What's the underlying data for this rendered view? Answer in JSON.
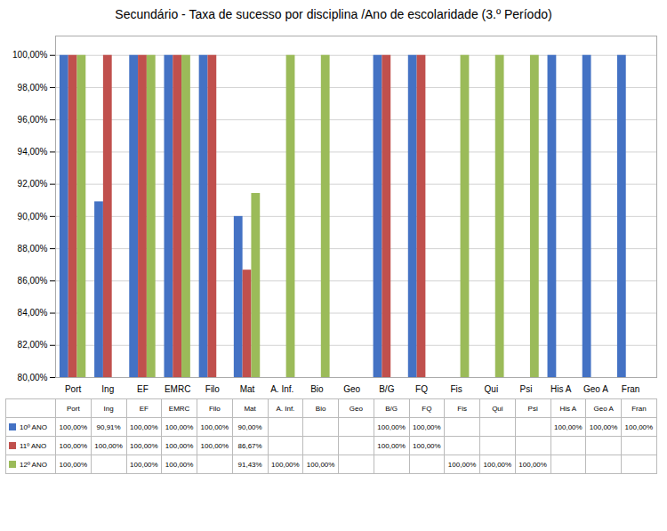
{
  "chart_data": {
    "type": "bar",
    "title": "Secundário - Taxa de sucesso por disciplina /Ano de escolaridade (3.º Período)",
    "categories": [
      "Port",
      "Ing",
      "EF",
      "EMRC",
      "Filo",
      "Mat",
      "A. Inf.",
      "Bio",
      "Geo",
      "B/G",
      "FQ",
      "Fis",
      "Qui",
      "Psi",
      "His A",
      "Geo A",
      "Fran"
    ],
    "series": [
      {
        "name": "10º ANO",
        "color": "#4472C4",
        "values": [
          100.0,
          90.91,
          100.0,
          100.0,
          100.0,
          90.0,
          null,
          null,
          null,
          100.0,
          100.0,
          null,
          null,
          null,
          100.0,
          100.0,
          100.0
        ],
        "value_labels": [
          "100,00%",
          "90,91%",
          "100,00%",
          "100,00%",
          "100,00%",
          "90,00%",
          null,
          null,
          null,
          "100,00%",
          "100,00%",
          null,
          null,
          null,
          "100,00%",
          "100,00%",
          "100,00%"
        ]
      },
      {
        "name": "11º ANO",
        "color": "#C0504D",
        "values": [
          100.0,
          100.0,
          100.0,
          100.0,
          100.0,
          86.67,
          null,
          null,
          null,
          100.0,
          100.0,
          null,
          null,
          null,
          null,
          null,
          null
        ],
        "value_labels": [
          "100,00%",
          "100,00%",
          "100,00%",
          "100,00%",
          "100,00%",
          "86,67%",
          null,
          null,
          null,
          "100,00%",
          "100,00%",
          null,
          null,
          null,
          null,
          null,
          null
        ]
      },
      {
        "name": "12º ANO",
        "color": "#9BBB59",
        "values": [
          100.0,
          null,
          100.0,
          100.0,
          null,
          91.43,
          100.0,
          100.0,
          null,
          null,
          null,
          100.0,
          100.0,
          100.0,
          null,
          null,
          null
        ],
        "value_labels": [
          "100,00%",
          null,
          "100,00%",
          "100,00%",
          null,
          "91,43%",
          "100,00%",
          "100,00%",
          null,
          null,
          null,
          "100,00%",
          "100,00%",
          "100,00%",
          null,
          null,
          null
        ]
      }
    ],
    "ylim": [
      80.0,
      101.2
    ],
    "yticks": [
      {
        "value": 80.0,
        "label": "80,00%"
      },
      {
        "value": 82.0,
        "label": "82,00%"
      },
      {
        "value": 84.0,
        "label": "84,00%"
      },
      {
        "value": 86.0,
        "label": "86,00%"
      },
      {
        "value": 88.0,
        "label": "88,00%"
      },
      {
        "value": 90.0,
        "label": "90,00%"
      },
      {
        "value": 92.0,
        "label": "92,00%"
      },
      {
        "value": 94.0,
        "label": "94,00%"
      },
      {
        "value": 96.0,
        "label": "96,00%"
      },
      {
        "value": 98.0,
        "label": "98,00%"
      },
      {
        "value": 100.0,
        "label": "100,00%"
      }
    ],
    "grid": true
  }
}
